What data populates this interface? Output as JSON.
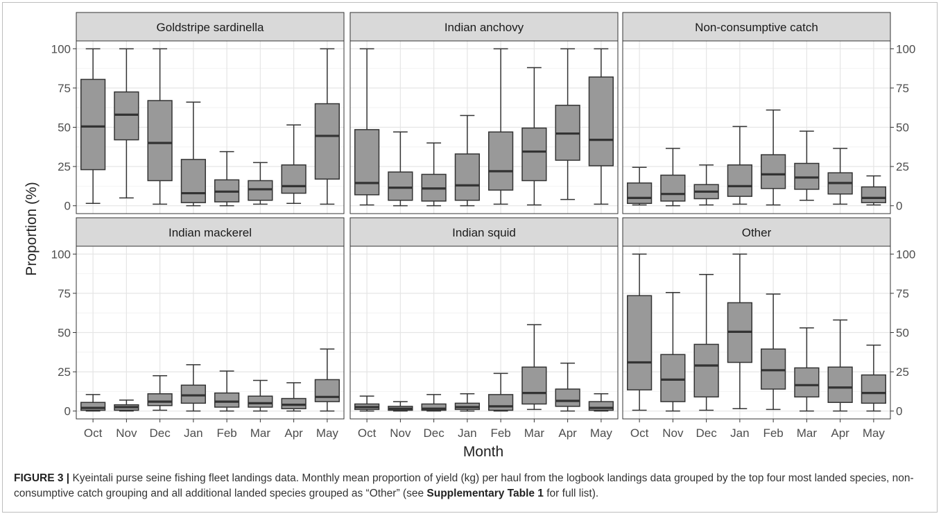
{
  "chart_data": {
    "type": "boxplot",
    "facet_layout": "2x3",
    "xlabel": "Month",
    "ylabel": "Proportion (%)",
    "categories": [
      "Oct",
      "Nov",
      "Dec",
      "Jan",
      "Feb",
      "Mar",
      "Apr",
      "May"
    ],
    "ylim": [
      0,
      100
    ],
    "yticks": [
      0,
      25,
      50,
      75,
      100
    ],
    "grid": true,
    "box_color": "#999999",
    "panel_header_color": "#d9d9d9",
    "panels": [
      {
        "title": "Goldstripe sardinella",
        "boxes": [
          {
            "month": "Oct",
            "min": 1.5,
            "q1": 23,
            "median": 50.5,
            "q3": 80.5,
            "max": 100
          },
          {
            "month": "Nov",
            "min": 5,
            "q1": 42,
            "median": 58,
            "q3": 72.5,
            "max": 100
          },
          {
            "month": "Dec",
            "min": 1,
            "q1": 16,
            "median": 40,
            "q3": 67,
            "max": 100
          },
          {
            "month": "Jan",
            "min": 0,
            "q1": 2,
            "median": 8,
            "q3": 29.5,
            "max": 66
          },
          {
            "month": "Feb",
            "min": 0,
            "q1": 2.5,
            "median": 9,
            "q3": 16.5,
            "max": 34.5
          },
          {
            "month": "Mar",
            "min": 1,
            "q1": 3.5,
            "median": 10.5,
            "q3": 16,
            "max": 27.5
          },
          {
            "month": "Apr",
            "min": 1.5,
            "q1": 8,
            "median": 12.5,
            "q3": 26,
            "max": 51.5
          },
          {
            "month": "May",
            "min": 1,
            "q1": 17,
            "median": 44.5,
            "q3": 65,
            "max": 100
          }
        ]
      },
      {
        "title": "Indian anchovy",
        "boxes": [
          {
            "month": "Oct",
            "min": 0.5,
            "q1": 7,
            "median": 14.5,
            "q3": 48.5,
            "max": 100
          },
          {
            "month": "Nov",
            "min": 0,
            "q1": 3.5,
            "median": 11.5,
            "q3": 21.5,
            "max": 47
          },
          {
            "month": "Dec",
            "min": 0,
            "q1": 3,
            "median": 11,
            "q3": 20,
            "max": 40
          },
          {
            "month": "Jan",
            "min": 0,
            "q1": 3.5,
            "median": 13,
            "q3": 33,
            "max": 57.5
          },
          {
            "month": "Feb",
            "min": 1,
            "q1": 10,
            "median": 22,
            "q3": 47,
            "max": 100
          },
          {
            "month": "Mar",
            "min": 0.5,
            "q1": 16,
            "median": 34.5,
            "q3": 49.5,
            "max": 88
          },
          {
            "month": "Apr",
            "min": 4,
            "q1": 29,
            "median": 46,
            "q3": 64,
            "max": 100
          },
          {
            "month": "May",
            "min": 1,
            "q1": 25.5,
            "median": 42,
            "q3": 82,
            "max": 100
          }
        ]
      },
      {
        "title": "Non-consumptive catch",
        "boxes": [
          {
            "month": "Oct",
            "min": 0.5,
            "q1": 1.5,
            "median": 5,
            "q3": 14.5,
            "max": 24.5
          },
          {
            "month": "Nov",
            "min": 0,
            "q1": 3,
            "median": 7.5,
            "q3": 19.5,
            "max": 36.5
          },
          {
            "month": "Dec",
            "min": 0.5,
            "q1": 4.5,
            "median": 9,
            "q3": 13.5,
            "max": 26
          },
          {
            "month": "Jan",
            "min": 1,
            "q1": 6,
            "median": 12.5,
            "q3": 26,
            "max": 50.5
          },
          {
            "month": "Feb",
            "min": 0.5,
            "q1": 11,
            "median": 20,
            "q3": 32.5,
            "max": 61
          },
          {
            "month": "Mar",
            "min": 3.5,
            "q1": 10.5,
            "median": 18,
            "q3": 27,
            "max": 47.5
          },
          {
            "month": "Apr",
            "min": 1,
            "q1": 7.5,
            "median": 14.5,
            "q3": 21,
            "max": 36.5
          },
          {
            "month": "May",
            "min": 0.5,
            "q1": 2,
            "median": 5,
            "q3": 12,
            "max": 19
          }
        ]
      },
      {
        "title": "Indian mackerel",
        "boxes": [
          {
            "month": "Oct",
            "min": 0,
            "q1": 0.5,
            "median": 2,
            "q3": 5.5,
            "max": 10.5
          },
          {
            "month": "Nov",
            "min": 0,
            "q1": 0.5,
            "median": 2.5,
            "q3": 4,
            "max": 7
          },
          {
            "month": "Dec",
            "min": 0.5,
            "q1": 3.5,
            "median": 6,
            "q3": 11,
            "max": 22.5
          },
          {
            "month": "Jan",
            "min": 0,
            "q1": 5,
            "median": 10,
            "q3": 16.5,
            "max": 29.5
          },
          {
            "month": "Feb",
            "min": 0,
            "q1": 2.5,
            "median": 6,
            "q3": 11.5,
            "max": 25.5
          },
          {
            "month": "Mar",
            "min": 0,
            "q1": 2.5,
            "median": 5,
            "q3": 9.5,
            "max": 19.5
          },
          {
            "month": "Apr",
            "min": 0,
            "q1": 1.5,
            "median": 4,
            "q3": 8,
            "max": 18
          },
          {
            "month": "May",
            "min": 0,
            "q1": 6,
            "median": 9,
            "q3": 20,
            "max": 39.5
          }
        ]
      },
      {
        "title": "Indian squid",
        "boxes": [
          {
            "month": "Oct",
            "min": 0,
            "q1": 1,
            "median": 2.5,
            "q3": 4.5,
            "max": 9.5
          },
          {
            "month": "Nov",
            "min": 0,
            "q1": 0.5,
            "median": 1.5,
            "q3": 3,
            "max": 6
          },
          {
            "month": "Dec",
            "min": 0,
            "q1": 0.5,
            "median": 1.5,
            "q3": 4.5,
            "max": 10.5
          },
          {
            "month": "Jan",
            "min": 0,
            "q1": 1,
            "median": 2.5,
            "q3": 5,
            "max": 11
          },
          {
            "month": "Feb",
            "min": 0,
            "q1": 0.5,
            "median": 3,
            "q3": 10.5,
            "max": 24
          },
          {
            "month": "Mar",
            "min": 1,
            "q1": 4.5,
            "median": 11.5,
            "q3": 28,
            "max": 55
          },
          {
            "month": "Apr",
            "min": 0,
            "q1": 3,
            "median": 6.5,
            "q3": 14,
            "max": 30.5
          },
          {
            "month": "May",
            "min": 0,
            "q1": 0.5,
            "median": 2,
            "q3": 6,
            "max": 11
          }
        ]
      },
      {
        "title": "Other",
        "boxes": [
          {
            "month": "Oct",
            "min": 0.5,
            "q1": 13.5,
            "median": 31,
            "q3": 73.5,
            "max": 100
          },
          {
            "month": "Nov",
            "min": 0,
            "q1": 6,
            "median": 20,
            "q3": 36,
            "max": 75.5
          },
          {
            "month": "Dec",
            "min": 0.5,
            "q1": 9,
            "median": 29,
            "q3": 42.5,
            "max": 87
          },
          {
            "month": "Jan",
            "min": 1.5,
            "q1": 31,
            "median": 50.5,
            "q3": 69,
            "max": 100
          },
          {
            "month": "Feb",
            "min": 1,
            "q1": 14,
            "median": 26,
            "q3": 39.5,
            "max": 74.5
          },
          {
            "month": "Mar",
            "min": 0,
            "q1": 9,
            "median": 16.5,
            "q3": 27.5,
            "max": 53
          },
          {
            "month": "Apr",
            "min": 0,
            "q1": 5.5,
            "median": 15,
            "q3": 28,
            "max": 58
          },
          {
            "month": "May",
            "min": 0,
            "q1": 5,
            "median": 11.5,
            "q3": 23,
            "max": 42
          }
        ]
      }
    ]
  },
  "caption": {
    "label": "FIGURE 3 |",
    "text_before": " Kyeintali purse seine fishing fleet landings data. Monthly mean proportion of yield (kg) per haul from the logbook landings data grouped by the top four most landed species, non-consumptive catch grouping and all additional landed species grouped as “Other” (see ",
    "ref": "Supplementary Table 1",
    "text_after": " for full list)."
  }
}
